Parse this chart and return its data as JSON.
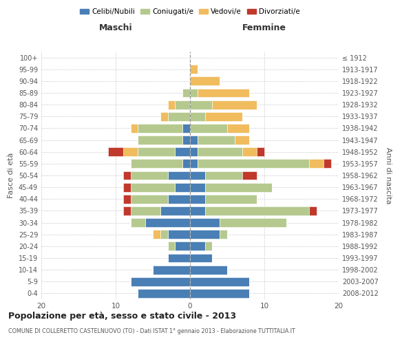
{
  "age_groups": [
    "0-4",
    "5-9",
    "10-14",
    "15-19",
    "20-24",
    "25-29",
    "30-34",
    "35-39",
    "40-44",
    "45-49",
    "50-54",
    "55-59",
    "60-64",
    "65-69",
    "70-74",
    "75-79",
    "80-84",
    "85-89",
    "90-94",
    "95-99",
    "100+"
  ],
  "birth_years": [
    "2008-2012",
    "2003-2007",
    "1998-2002",
    "1993-1997",
    "1988-1992",
    "1983-1987",
    "1978-1982",
    "1973-1977",
    "1968-1972",
    "1963-1967",
    "1958-1962",
    "1953-1957",
    "1948-1952",
    "1943-1947",
    "1938-1942",
    "1933-1937",
    "1928-1932",
    "1923-1927",
    "1918-1922",
    "1913-1917",
    "≤ 1912"
  ],
  "colors": {
    "celibi": "#4a7fb5",
    "coniugati": "#b5c98e",
    "vedovi": "#f0bc5e",
    "divorziati": "#c0392b"
  },
  "maschi": {
    "celibi": [
      7,
      8,
      5,
      3,
      2,
      3,
      6,
      4,
      3,
      2,
      3,
      1,
      2,
      1,
      1,
      0,
      0,
      0,
      0,
      0,
      0
    ],
    "coniugati": [
      0,
      0,
      0,
      0,
      1,
      1,
      2,
      4,
      5,
      6,
      5,
      7,
      5,
      6,
      6,
      3,
      2,
      1,
      0,
      0,
      0
    ],
    "vedovi": [
      0,
      0,
      0,
      0,
      0,
      1,
      0,
      0,
      0,
      0,
      0,
      0,
      2,
      0,
      1,
      1,
      1,
      0,
      0,
      0,
      0
    ],
    "divorziati": [
      0,
      0,
      0,
      0,
      0,
      0,
      0,
      1,
      1,
      1,
      1,
      0,
      2,
      0,
      0,
      0,
      0,
      0,
      0,
      0,
      0
    ]
  },
  "femmine": {
    "celibi": [
      8,
      8,
      5,
      3,
      2,
      4,
      4,
      2,
      2,
      2,
      2,
      1,
      1,
      1,
      0,
      0,
      0,
      0,
      0,
      0,
      0
    ],
    "coniugati": [
      0,
      0,
      0,
      0,
      1,
      1,
      9,
      14,
      7,
      9,
      5,
      15,
      6,
      5,
      5,
      2,
      3,
      1,
      0,
      0,
      0
    ],
    "vedovi": [
      0,
      0,
      0,
      0,
      0,
      0,
      0,
      0,
      0,
      0,
      0,
      2,
      2,
      2,
      3,
      5,
      6,
      7,
      4,
      1,
      0
    ],
    "divorziati": [
      0,
      0,
      0,
      0,
      0,
      0,
      0,
      1,
      0,
      0,
      2,
      1,
      1,
      0,
      0,
      0,
      0,
      0,
      0,
      0,
      0
    ]
  },
  "title": "Popolazione per età, sesso e stato civile - 2013",
  "subtitle": "COMUNE DI COLLERETTO CASTELNUOVO (TO) - Dati ISTAT 1° gennaio 2013 - Elaborazione TUTTITALIA.IT",
  "xlabel_left": "Maschi",
  "xlabel_right": "Femmine",
  "ylabel_left": "Fasce di età",
  "ylabel_right": "Anni di nascita",
  "xlim": 20,
  "legend_labels": [
    "Celibi/Nubili",
    "Coniugati/e",
    "Vedovi/e",
    "Divorziati/e"
  ],
  "bg_color": "#ffffff",
  "grid_color": "#cccccc"
}
